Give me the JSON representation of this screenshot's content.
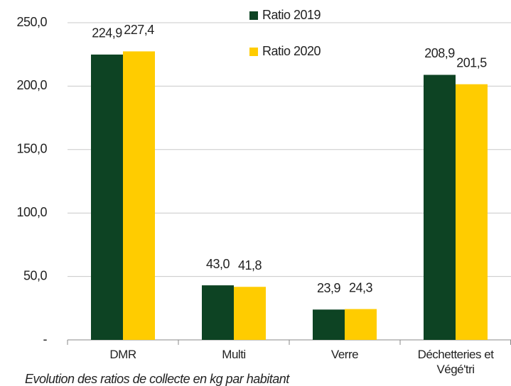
{
  "chart_data": {
    "type": "bar",
    "subtitle": "Evolution des ratios de collecte en kg par habitant",
    "categories": [
      "DMR",
      "Multi",
      "Verre",
      "Déchetteries et Végé'tri"
    ],
    "series": [
      {
        "name": "Ratio 2019",
        "color": "#0d4323",
        "values": [
          224.9,
          43.0,
          23.9,
          208.9
        ],
        "value_labels": [
          "224,9",
          "43,0",
          "23,9",
          "208,9"
        ]
      },
      {
        "name": "Ratio 2020",
        "color": "#ffcc00",
        "values": [
          227.4,
          41.8,
          24.3,
          201.5
        ],
        "value_labels": [
          "227,4",
          "41,8",
          "24,3",
          "201,5"
        ]
      }
    ],
    "ylim": [
      0,
      250
    ],
    "yticks": [
      {
        "value": 0,
        "label": "-"
      },
      {
        "value": 50,
        "label": "50,0"
      },
      {
        "value": 100,
        "label": "100,0"
      },
      {
        "value": 150,
        "label": "150,0"
      },
      {
        "value": 200,
        "label": "200,0"
      },
      {
        "value": 250,
        "label": "250,0"
      }
    ],
    "grid": true,
    "legend": "top"
  }
}
